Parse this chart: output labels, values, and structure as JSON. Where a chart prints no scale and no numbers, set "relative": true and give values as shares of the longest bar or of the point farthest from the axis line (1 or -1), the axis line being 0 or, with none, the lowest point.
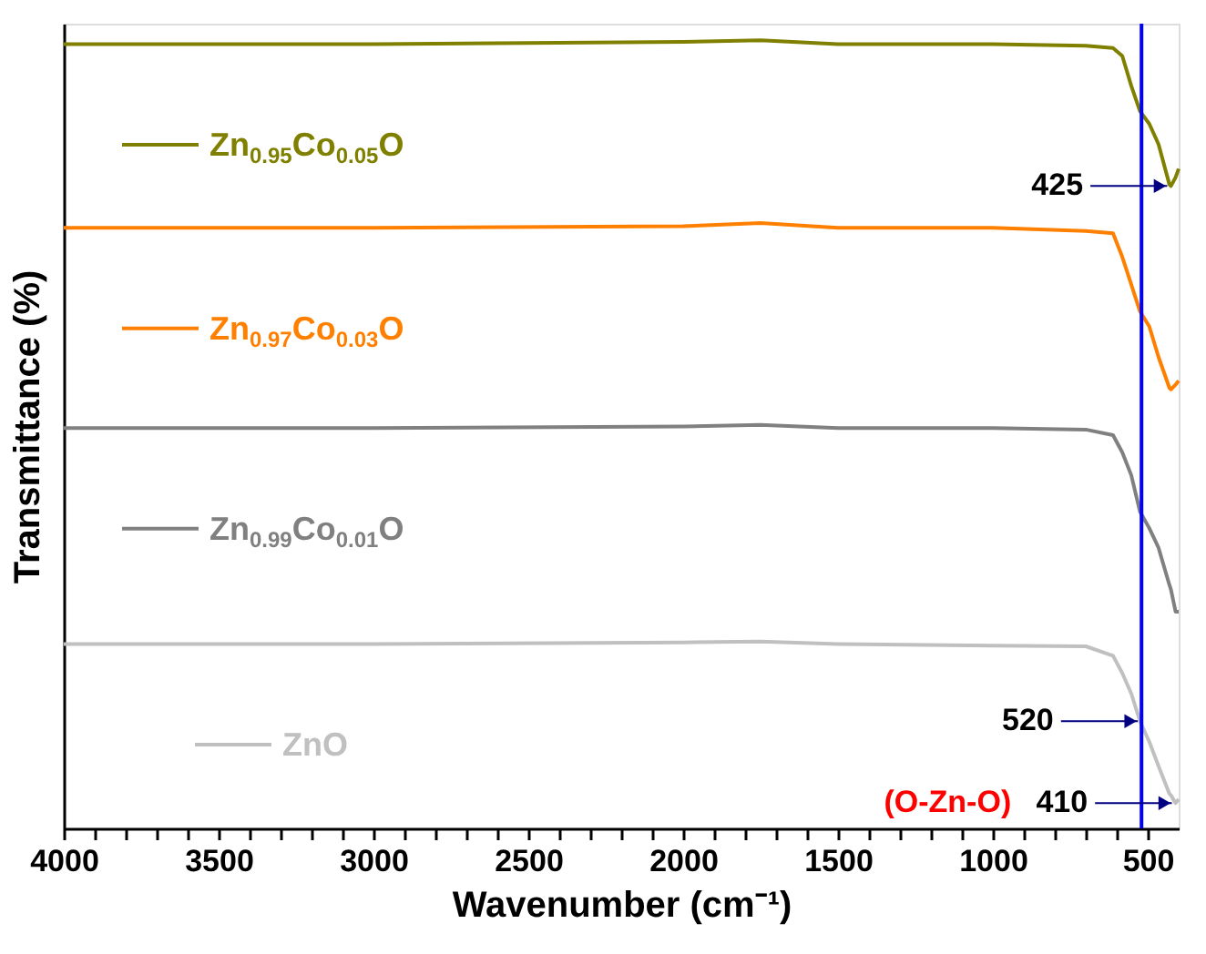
{
  "chart_data": {
    "type": "line",
    "relative": true,
    "xlabel": "Wavenumber (cm⁻¹)",
    "ylabel": "Transmittance (%)",
    "xlim": [
      4000,
      400
    ],
    "xticks": [
      4000,
      {
        "value": 3900,
        "label": null
      },
      {
        "value": 3800,
        "label": null
      },
      {
        "value": 3700,
        "label": null
      },
      {
        "value": 3600,
        "label": null
      },
      3500,
      {
        "value": 3400,
        "label": null
      },
      {
        "value": 3300,
        "label": null
      },
      {
        "value": 3200,
        "label": null
      },
      {
        "value": 3100,
        "label": null
      },
      3000,
      {
        "value": 2900,
        "label": null
      },
      {
        "value": 2800,
        "label": null
      },
      {
        "value": 2700,
        "label": null
      },
      {
        "value": 2600,
        "label": null
      },
      2500,
      {
        "value": 2400,
        "label": null
      },
      {
        "value": 2300,
        "label": null
      },
      {
        "value": 2200,
        "label": null
      },
      {
        "value": 2100,
        "label": null
      },
      2000,
      {
        "value": 1900,
        "label": null
      },
      {
        "value": 1800,
        "label": null
      },
      {
        "value": 1700,
        "label": null
      },
      {
        "value": 1600,
        "label": null
      },
      1500,
      {
        "value": 1400,
        "label": null
      },
      {
        "value": 1300,
        "label": null
      },
      {
        "value": 1200,
        "label": null
      },
      {
        "value": 1100,
        "label": null
      },
      1000,
      {
        "value": 900,
        "label": null
      },
      {
        "value": 800,
        "label": null
      },
      {
        "value": 700,
        "label": null
      },
      {
        "value": 600,
        "label": null
      },
      500
    ],
    "x": [
      4000,
      3000,
      2000,
      1750,
      1500,
      1000,
      700,
      612,
      582,
      553,
      525,
      495,
      465,
      430,
      425,
      410,
      400
    ],
    "series": [
      {
        "name": "Zn$_{0.95}$Co$_{0.05}$O",
        "color": "#808000",
        "values": [
          0.995,
          0.995,
          0.998,
          1.0,
          0.995,
          0.995,
          0.993,
          0.99,
          0.98,
          0.942,
          0.91,
          0.894,
          0.868,
          0.817,
          0.815,
          0.826,
          0.837
        ]
      },
      {
        "name": "Zn$_{0.97}$Co$_{0.03}$O",
        "color": "#ff8000",
        "values": [
          0.762,
          0.762,
          0.764,
          0.768,
          0.762,
          0.762,
          0.758,
          0.755,
          0.725,
          0.69,
          0.656,
          0.637,
          0.598,
          0.559,
          0.557,
          0.563,
          0.568
        ]
      },
      {
        "name": "Zn$_{0.99}$Co$_{0.01}$O",
        "color": "#808080",
        "values": [
          0.508,
          0.508,
          0.51,
          0.512,
          0.508,
          0.508,
          0.506,
          0.499,
          0.477,
          0.448,
          0.402,
          0.381,
          0.356,
          0.309,
          0.303,
          0.275,
          0.275
        ]
      },
      {
        "name": "ZnO",
        "color": "#c0c0c0",
        "values": [
          0.234,
          0.234,
          0.236,
          0.237,
          0.234,
          0.232,
          0.231,
          0.219,
          0.197,
          0.171,
          0.136,
          0.11,
          0.079,
          0.044,
          0.042,
          0.032,
          0.037
        ]
      }
    ],
    "ref_lines": [
      {
        "axis": "x",
        "value": 520,
        "color": "#0000ff"
      }
    ],
    "annotations": [
      {
        "text": "425",
        "x": 425,
        "y": 0.815
      },
      {
        "text": "520",
        "x": 520,
        "y": 0.136
      },
      {
        "text": "410",
        "x": 410,
        "y": 0.032
      },
      "(O-Zn-O)"
    ],
    "legend": "left"
  }
}
